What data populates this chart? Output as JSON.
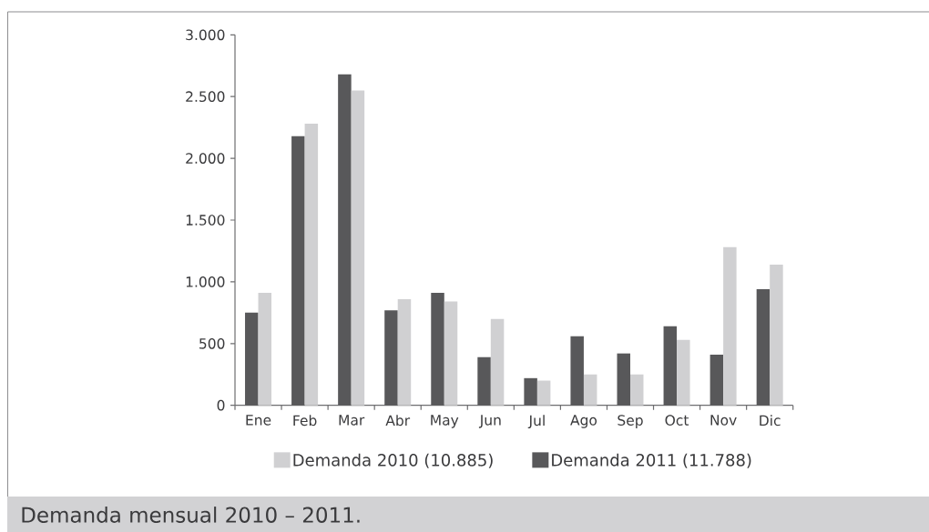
{
  "chart_data": {
    "type": "bar",
    "categories": [
      "Ene",
      "Feb",
      "Mar",
      "Abr",
      "May",
      "Jun",
      "Jul",
      "Ago",
      "Sep",
      "Oct",
      "Nov",
      "Dic"
    ],
    "series": [
      {
        "name": "Demanda 2011 (11.788)",
        "color": "#58585a",
        "values": [
          750,
          2180,
          2680,
          770,
          910,
          390,
          220,
          560,
          420,
          640,
          410,
          940
        ]
      },
      {
        "name": "Demanda 2010 (10.885)",
        "color": "#d0d0d2",
        "values": [
          910,
          2280,
          2550,
          860,
          840,
          700,
          200,
          250,
          250,
          530,
          1280,
          1140
        ]
      }
    ],
    "ylim": [
      0,
      3000
    ],
    "yticks": [
      0,
      500,
      {
        "value": 1000,
        "label": "1.000"
      },
      {
        "value": 1500,
        "label": "1.500"
      },
      {
        "value": 2000,
        "label": "2.000"
      },
      {
        "value": 2500,
        "label": "2.500"
      },
      {
        "value": 3000,
        "label": "3.000"
      }
    ],
    "legend": "bottom",
    "annotations": [
      "Demanda mensual 2010 – 2011."
    ]
  }
}
